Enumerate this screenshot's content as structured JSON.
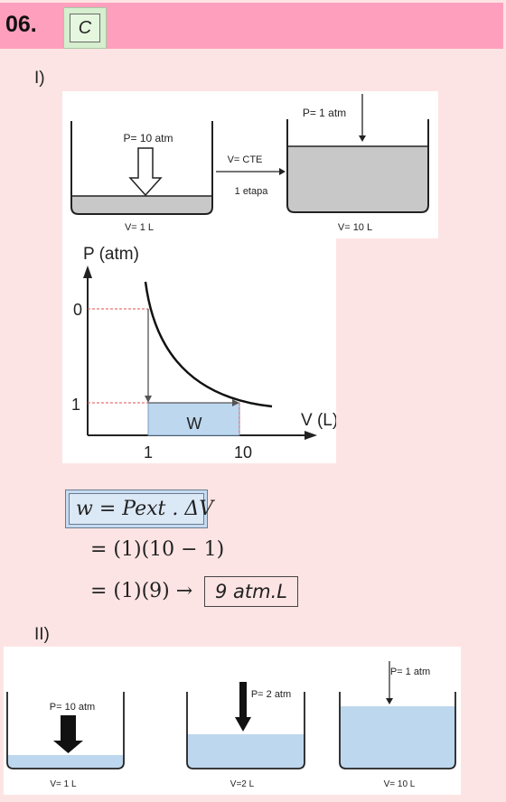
{
  "header": {
    "question_number": "06.",
    "answer": "C"
  },
  "part1": {
    "label": "I)",
    "diagram": {
      "left_pressure": "P= 10 atm",
      "left_volume": "V= 1 L",
      "process_top": "V= CTE",
      "process_bottom": "1 etapa",
      "right_pressure": "P= 1 atm",
      "right_volume": "V= 10 L"
    },
    "graph": {
      "y_axis_label": "P (atm)",
      "x_axis_label": "V (L)",
      "y_tick_top": "0",
      "y_tick_bottom": "1",
      "x_tick_left": "1",
      "x_tick_right": "10",
      "area_label": "W"
    },
    "formula": {
      "line1": "w = Pext . ΔV",
      "line2": "= (1)(10 − 1)",
      "line3_prefix": "= (1)(9) →",
      "result": "9 atm.L"
    }
  },
  "part2": {
    "label": "II)",
    "vessels": [
      {
        "pressure": "P= 10 atm",
        "volume": "V= 1 L"
      },
      {
        "pressure": "P= 2 atm",
        "volume": "V=2 L"
      },
      {
        "pressure": "P= 1 atm",
        "volume": "V= 10 L"
      }
    ]
  },
  "colors": {
    "background": "#fde4e4",
    "header": "#ff9fbe",
    "answer_box": "#d6efcf",
    "liquid_gray": "#c8c8c8",
    "liquid_blue": "#bdd7ee",
    "work_area": "#bdd7ee"
  }
}
